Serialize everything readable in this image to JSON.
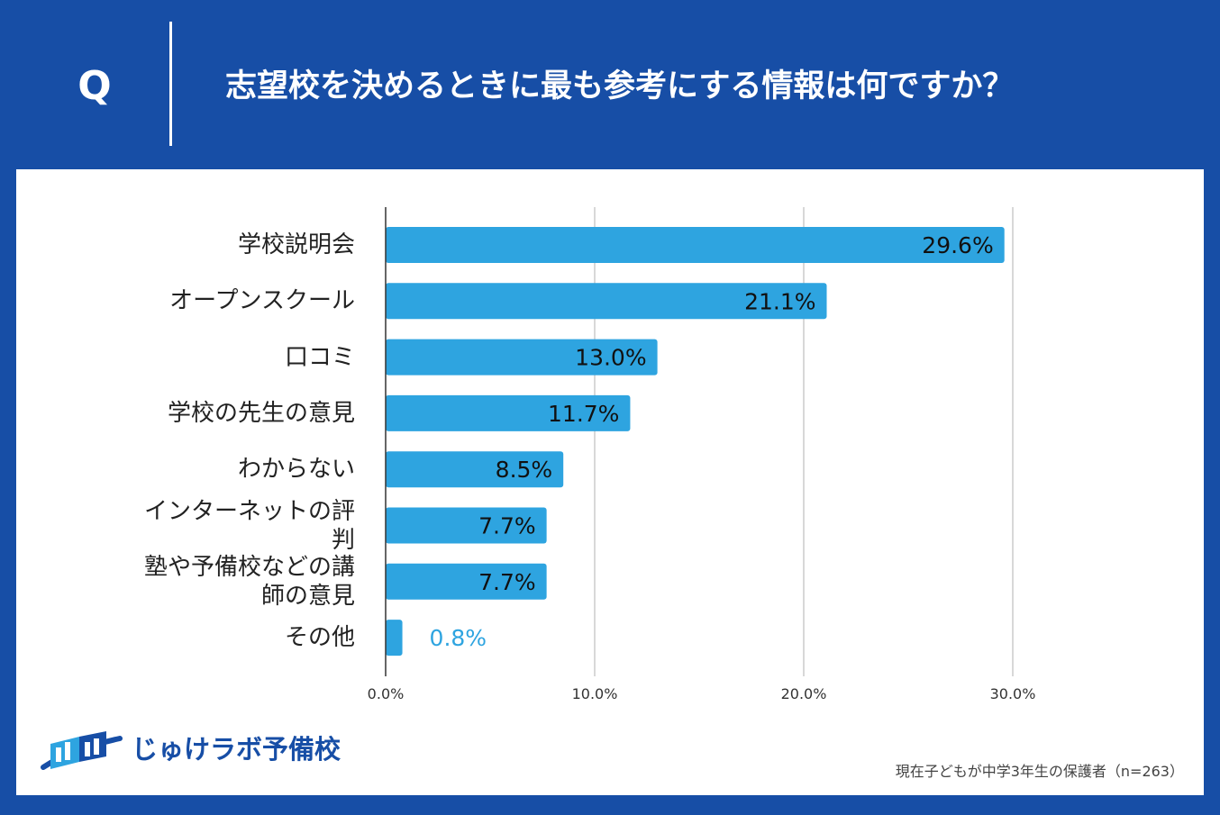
{
  "header": {
    "q_mark": "Q",
    "title": "志望校を決めるときに最も参考にする情報は何ですか？"
  },
  "brand": {
    "name": "じゅけラボ予備校"
  },
  "footnote": "現在子どもが中学3年生の保護者（n=263）",
  "colors": {
    "bar": "#2ea4e0",
    "background": "#174ea6",
    "grid": "#cccccc"
  },
  "chart_data": {
    "type": "bar",
    "orientation": "horizontal",
    "categories": [
      [
        "学校説明会"
      ],
      [
        "オープンスクール"
      ],
      [
        "口コミ"
      ],
      [
        "学校の先生の意見"
      ],
      [
        "わからない"
      ],
      [
        "インターネットの評",
        "判"
      ],
      [
        "塾や予備校などの講",
        "師の意見"
      ],
      [
        "その他"
      ]
    ],
    "values": [
      29.6,
      21.1,
      13.0,
      11.7,
      8.5,
      7.7,
      7.7,
      0.8
    ],
    "value_labels": [
      "29.6%",
      "21.1%",
      "13.0%",
      "11.7%",
      "8.5%",
      "7.7%",
      "7.7%",
      "0.8%"
    ],
    "xlim": [
      0,
      30
    ],
    "xticks": [
      0,
      10,
      20,
      30
    ],
    "xtick_labels": [
      "0.0%",
      "10.0%",
      "20.0%",
      "30.0%"
    ],
    "grid": true
  }
}
